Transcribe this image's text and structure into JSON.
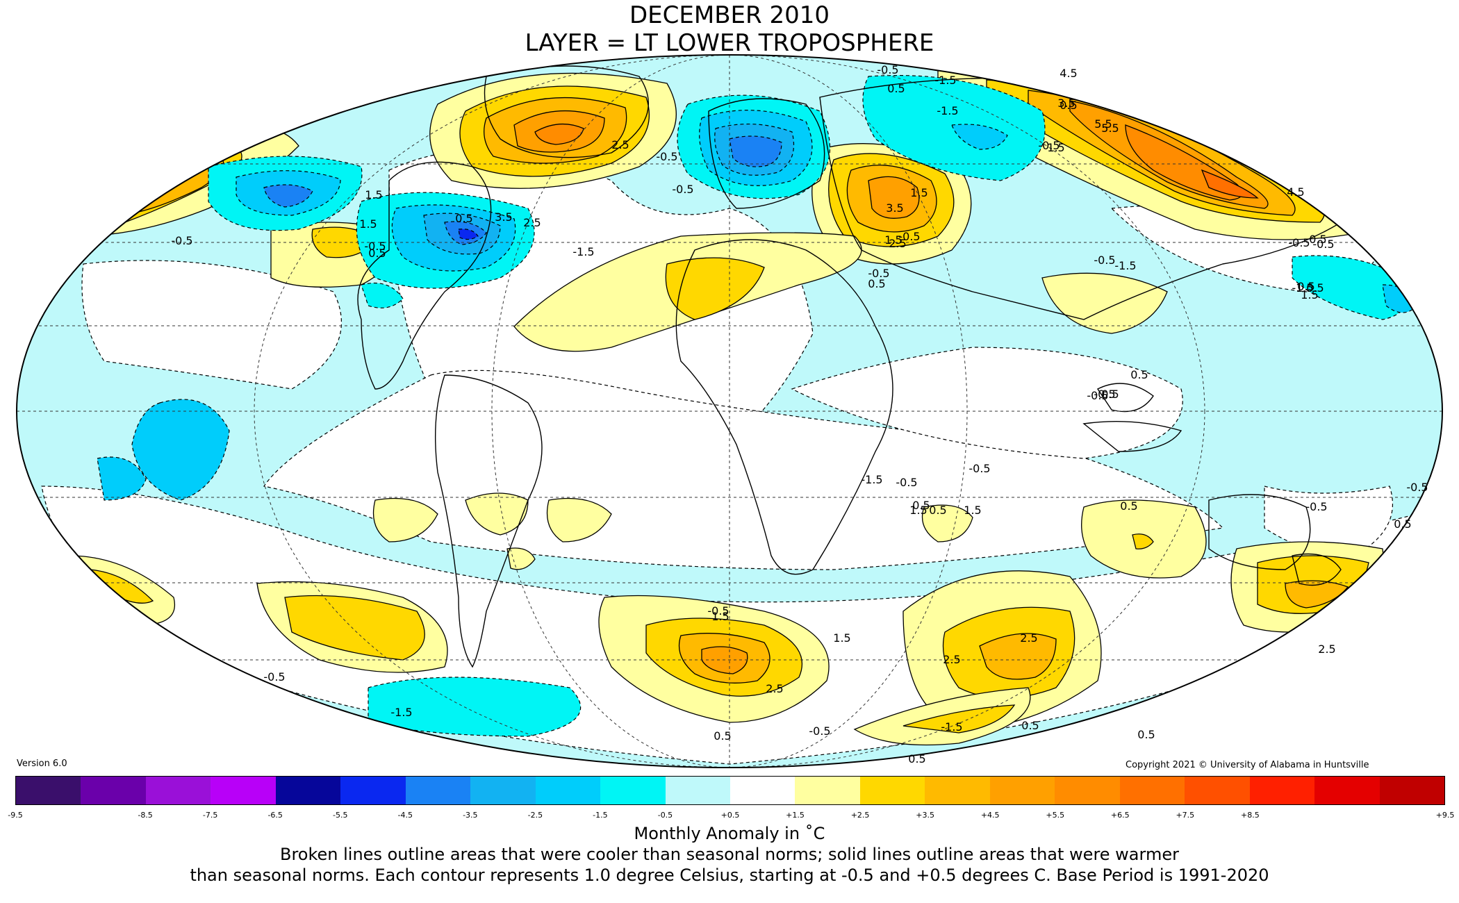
{
  "title": {
    "line1": "DECEMBER 2010",
    "line2": "LAYER = LT LOWER TROPOSPHERE"
  },
  "version": "Version 6.0",
  "copyright": "Copyright 2021 © University of Alabama in Huntsville",
  "colorbar": {
    "ticks": [
      "-9.5",
      "-8.5",
      "-7.5",
      "-6.5",
      "-5.5",
      "-4.5",
      "-3.5",
      "-2.5",
      "-1.5",
      "-0.5",
      "+0.5",
      "+1.5",
      "+2.5",
      "+3.5",
      "+4.5",
      "+5.5",
      "+6.5",
      "+7.5",
      "+8.5",
      "+9.5"
    ],
    "colors": [
      "#3a0f6b",
      "#6a00aa",
      "#9a10d8",
      "#b800f8",
      "#06069a",
      "#0a28f0",
      "#1a82f4",
      "#12b2f2",
      "#00cdfb",
      "#00f5f5",
      "#bff9fa",
      "#ffffff",
      "#ffffa0",
      "#ffd800",
      "#ffba00",
      "#ffa000",
      "#ff8c00",
      "#ff7000",
      "#ff5000",
      "#ff2000",
      "#e40000",
      "#c00000"
    ]
  },
  "captions": {
    "units": "Monthly Anomaly in ˚C",
    "line1": "Broken lines outline areas that were cooler than seasonal norms; solid lines outline areas that were warmer",
    "line2": "than seasonal norms. Each contour represents 1.0 degree Celsius, starting at -0.5 and +0.5 degrees C. Base Period is 1991-2020"
  },
  "map": {
    "projection": "Mollweide, world",
    "colors": {
      "ocean_background": "#bff9fa",
      "near_zero": "#ffffff"
    },
    "regions": [
      {
        "name": "N. Atlantic / Greenland warm",
        "level": "+3.5",
        "color": "#ffa000"
      },
      {
        "name": "N. Atlantic / Greenland warm core",
        "level": "+4.5",
        "color": "#ff8c00"
      },
      {
        "name": "N. Europe / Scandinavia cold",
        "level": "-4.5",
        "color": "#0a28f0"
      },
      {
        "name": "Eastern N. America cold",
        "level": "-4.5",
        "color": "#0a28f0"
      },
      {
        "name": "Alaska / N. Pacific cold",
        "level": "-3.5",
        "color": "#1a82f4"
      },
      {
        "name": "Middle East / Turkey warm",
        "level": "+3.5",
        "color": "#ffa000"
      },
      {
        "name": "Siberia / Arctic warm",
        "level": "+5.5",
        "color": "#ff7000"
      },
      {
        "name": "Sahara warm",
        "level": "+1.5",
        "color": "#ffd800"
      },
      {
        "name": "Southern Ocean Atlantic warm",
        "level": "+2.5",
        "color": "#ffba00"
      },
      {
        "name": "Southern Ocean Indian warm",
        "level": "+2.5",
        "color": "#ffba00"
      },
      {
        "name": "South Pacific warm",
        "level": "+1.5",
        "color": "#ffd800"
      },
      {
        "name": "SW Pacific / NZ warm",
        "level": "+1.5",
        "color": "#ffd800"
      }
    ],
    "contour_labels": [
      "-0.5",
      "1.5",
      "1.5",
      "-0.5",
      "0.5",
      "0.5",
      "3.5",
      "2.5",
      "-0.5",
      "-0.5",
      "2.5",
      "-1.5",
      "-0.5",
      "0.5",
      "-1.5",
      "-1.5",
      "-0.5",
      "0.5",
      "1.5",
      "3.5",
      "4.5",
      "5.5",
      "1.5",
      "-0.5",
      "2.5",
      "0.5",
      "-0.5",
      "-0.5",
      "-1.5",
      "-0.5",
      "0.5",
      "0.5",
      "0.5",
      "0.5",
      "0.5",
      "1.5",
      "-0.5",
      "-0.5",
      "1.5",
      "2.5",
      "0.5",
      "-0.5",
      "2.5",
      "-0.5",
      "0.5",
      "1.5",
      "-1.5",
      "-0.5",
      "-0.5",
      "1.5",
      "0.5",
      "0.5",
      "-1.5",
      "3.5",
      "1.5",
      "-1.5",
      "2.5",
      "2.5",
      "5.5",
      "4.5",
      "-0.5",
      "0.5",
      "0.5",
      "0.5",
      "-0.5",
      "0.5",
      "1.5",
      "-0.5",
      "-1.5",
      "-0.5"
    ]
  }
}
